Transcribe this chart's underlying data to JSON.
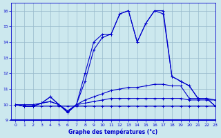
{
  "xlabel": "Graphe des températures (°c)",
  "xlim": [
    -0.5,
    23
  ],
  "ylim": [
    9,
    16.5
  ],
  "yticks": [
    9,
    10,
    11,
    12,
    13,
    14,
    15,
    16
  ],
  "xticks": [
    0,
    1,
    2,
    3,
    4,
    5,
    6,
    7,
    8,
    9,
    10,
    11,
    12,
    13,
    14,
    15,
    16,
    17,
    18,
    19,
    20,
    21,
    22,
    23
  ],
  "background_color": "#cce8ee",
  "grid_color": "#99bbcc",
  "line_color": "#0000cc",
  "series": [
    {
      "x": [
        0,
        1,
        2,
        3,
        4,
        5,
        6,
        7,
        8,
        9,
        10,
        11,
        12,
        13,
        14,
        15,
        16,
        17,
        18,
        19,
        20,
        21,
        22,
        23
      ],
      "y": [
        10.0,
        9.9,
        9.9,
        9.9,
        9.9,
        9.9,
        9.9,
        9.9,
        9.9,
        9.9,
        9.9,
        9.9,
        9.9,
        9.9,
        9.9,
        9.9,
        9.9,
        9.9,
        9.9,
        9.9,
        9.9,
        9.9,
        9.9,
        9.9
      ]
    },
    {
      "x": [
        0,
        1,
        2,
        3,
        4,
        5,
        6,
        7,
        8,
        9,
        10,
        11,
        12,
        13,
        14,
        15,
        16,
        17,
        18,
        19,
        20,
        21,
        22,
        23
      ],
      "y": [
        10.0,
        9.9,
        9.9,
        10.1,
        10.2,
        10.0,
        9.6,
        10.0,
        10.1,
        10.2,
        10.3,
        10.4,
        10.4,
        10.4,
        10.4,
        10.4,
        10.4,
        10.4,
        10.4,
        10.4,
        10.3,
        10.3,
        10.3,
        10.3
      ]
    },
    {
      "x": [
        0,
        1,
        2,
        3,
        4,
        5,
        6,
        7,
        8,
        9,
        10,
        11,
        12,
        13,
        14,
        15,
        16,
        17,
        18,
        19,
        20,
        21,
        22,
        23
      ],
      "y": [
        10.0,
        9.9,
        9.9,
        10.1,
        10.2,
        10.0,
        9.6,
        10.0,
        10.3,
        10.5,
        10.7,
        10.9,
        11.0,
        11.1,
        11.1,
        11.2,
        11.3,
        11.3,
        11.2,
        11.2,
        10.4,
        10.4,
        10.4,
        10.3
      ]
    },
    {
      "x": [
        0,
        1,
        2,
        3,
        4,
        5,
        6,
        7,
        8,
        9,
        10,
        11,
        12,
        13,
        14,
        15,
        16,
        17,
        18,
        19,
        20,
        21,
        22,
        23
      ],
      "y": [
        10.0,
        10.0,
        10.0,
        10.1,
        10.5,
        10.0,
        9.5,
        10.0,
        12.0,
        14.0,
        14.5,
        14.5,
        15.8,
        16.0,
        14.0,
        15.2,
        16.0,
        16.0,
        11.8,
        11.5,
        11.2,
        10.4,
        10.4,
        9.9
      ]
    },
    {
      "x": [
        0,
        1,
        2,
        3,
        4,
        5,
        6,
        7,
        8,
        9,
        10,
        11,
        12,
        13,
        14,
        15,
        16,
        17,
        18,
        19,
        20,
        21,
        22,
        23
      ],
      "y": [
        10.0,
        9.9,
        9.9,
        10.1,
        10.5,
        10.0,
        9.5,
        10.0,
        11.5,
        13.5,
        14.3,
        14.5,
        15.8,
        16.0,
        14.0,
        15.2,
        16.0,
        15.8,
        11.8,
        11.5,
        11.2,
        10.4,
        10.4,
        9.9
      ]
    }
  ]
}
